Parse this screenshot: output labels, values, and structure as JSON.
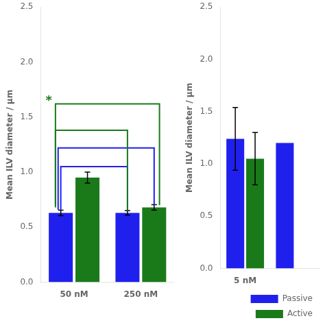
{
  "chart_data": [
    {
      "type": "bar",
      "ylabel": "Mean ILV diameter / μm",
      "categories": [
        "50 nM",
        "250 nM"
      ],
      "series": [
        {
          "name": "Passive",
          "color": "#2020EE",
          "values": [
            0.63,
            0.63
          ],
          "errors": [
            0.025,
            0.02
          ]
        },
        {
          "name": "Active",
          "color": "#1A7A1A",
          "values": [
            0.95,
            0.68
          ],
          "errors": [
            0.05,
            0.025
          ]
        }
      ],
      "ylim": [
        0.0,
        2.5
      ],
      "yticks": [
        {
          "value": 0,
          "label": "0.0"
        },
        0.5,
        {
          "value": 1,
          "label": "1.0"
        },
        1.5,
        {
          "value": 2,
          "label": "2.0"
        },
        2.5
      ],
      "grid": false,
      "brackets": [
        {
          "start": {
            "category": "50 nM",
            "series": "Passive",
            "y": 0.66
          },
          "end": {
            "category": "250 nM",
            "series": "Passive",
            "y": 0.65
          },
          "y": 1.05,
          "color": "#2020EE"
        },
        {
          "start": {
            "category": "50 nM",
            "series": "Passive",
            "y": 0.66
          },
          "end": {
            "category": "250 nM",
            "series": "Active",
            "y": 0.7
          },
          "y": 1.22,
          "color": "#2020EE"
        },
        {
          "start": {
            "category": "50 nM",
            "series": "Passive",
            "y": 0.68
          },
          "end": {
            "category": "250 nM",
            "series": "Passive",
            "y": 0.65
          },
          "y": 1.38,
          "color": "#1A7A1A"
        },
        {
          "start": {
            "category": "50 nM",
            "series": "Passive",
            "y": 0.7
          },
          "end": {
            "category": "250 nM",
            "series": "Active",
            "y": 0.7
          },
          "y": 1.62,
          "color": "#1A7A1A",
          "label": "*"
        }
      ]
    },
    {
      "type": "bar",
      "ylabel": "Mean ILV diameter / μm",
      "categories": [
        "5 nM",
        null
      ],
      "series": [
        {
          "name": "Passive",
          "color": "#2020EE",
          "values": [
            1.24,
            1.2
          ],
          "errors": [
            0.3,
            null
          ]
        },
        {
          "name": "Active",
          "color": "#1A7A1A",
          "values": [
            1.05,
            null
          ],
          "errors": [
            0.25,
            null
          ]
        }
      ],
      "ylim": [
        0.0,
        2.5
      ],
      "yticks": [
        {
          "value": 0,
          "label": "0.0"
        },
        0.5,
        {
          "value": 1,
          "label": "1.0"
        },
        1.5,
        {
          "value": 2,
          "label": "2.0"
        },
        2.5
      ],
      "grid": false,
      "legend": "lower right"
    }
  ]
}
